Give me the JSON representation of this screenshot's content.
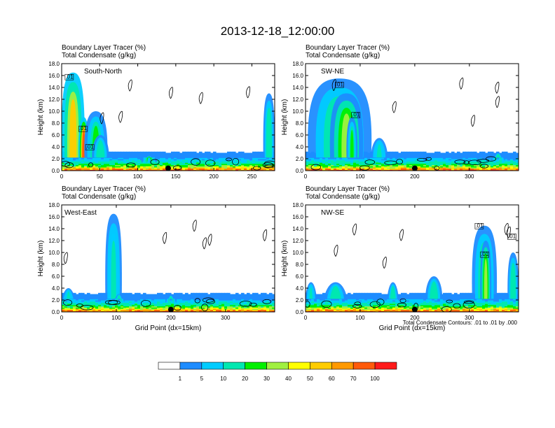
{
  "figure": {
    "title": "2013-12-18_12:00:00",
    "shading_field": "Boundary Layer Tracer",
    "shading_units": "(%)",
    "contour_field": "Total Condensate",
    "contour_units": "(g/kg)",
    "contour_note": "Total Condensate Contours: .01 to .01 by .000",
    "marker_color": "#000000"
  },
  "chart_data": [
    {
      "type": "heatmap",
      "region": "South-North",
      "title": "Boundary Layer Tracer (%)",
      "subtitle": "Total Condensate (g/kg)",
      "xlabel": "",
      "ylabel": "Height (km)",
      "xlim": [
        0,
        280
      ],
      "ylim": [
        0,
        18
      ],
      "xticks": [
        0,
        50,
        100,
        150,
        200,
        250
      ],
      "yticks": [
        0,
        2,
        4,
        6,
        8,
        10,
        12,
        14,
        16,
        18
      ],
      "ytick_labels": [
        "0.0",
        "2.0",
        "4.0",
        "6.0",
        "8.0",
        "10.0",
        "12.0",
        "14.0",
        "16.0",
        "18.0"
      ],
      "marker_x": 140,
      "contour_labels": [
        {
          "text": ".01",
          "x": 10,
          "y": 15.5
        },
        {
          "text": ".01",
          "x": 28,
          "y": 6.8
        },
        {
          "text": ".01",
          "x": 37,
          "y": 3.7
        }
      ],
      "plumes": [
        {
          "x": [
            0,
            30
          ],
          "ymax": 16.5,
          "p": 55
        },
        {
          "x": [
            22,
            36
          ],
          "ymax": 9,
          "p": 80
        },
        {
          "x": [
            30,
            60
          ],
          "ymax": 10,
          "p": 20
        },
        {
          "x": [
            40,
            62
          ],
          "ymax": 6,
          "p": 18
        },
        {
          "x": [
            105,
            125
          ],
          "ymax": 2.5,
          "p": 20
        },
        {
          "x": [
            265,
            280
          ],
          "ymax": 13,
          "p": 18
        }
      ]
    },
    {
      "type": "heatmap",
      "region": "SW-NE",
      "title": "Boundary Layer Tracer (%)",
      "subtitle": "Total Condensate (g/kg)",
      "xlabel": "",
      "ylabel": "Height (km)",
      "xlim": [
        0,
        390
      ],
      "ylim": [
        0,
        18
      ],
      "xticks": [
        0,
        100,
        200,
        300
      ],
      "yticks": [
        0,
        2,
        4,
        6,
        8,
        10,
        12,
        14,
        16,
        18
      ],
      "ytick_labels": [
        "0.0",
        "2.0",
        "4.0",
        "6.0",
        "8.0",
        "10.0",
        "12.0",
        "14.0",
        "16.0",
        "18.0"
      ],
      "marker_x": 200,
      "contour_labels": [
        {
          "text": ".01",
          "x": 62,
          "y": 14.2
        },
        {
          "text": ".01",
          "x": 92,
          "y": 9.1
        }
      ],
      "plumes": [
        {
          "x": [
            5,
            120
          ],
          "ymax": 15.5,
          "p": 22
        },
        {
          "x": [
            45,
            105
          ],
          "ymax": 13,
          "p": 32
        },
        {
          "x": [
            75,
            95
          ],
          "ymax": 9,
          "p": 28
        },
        {
          "x": [
            120,
            150
          ],
          "ymax": 5.5,
          "p": 10
        },
        {
          "x": [
            340,
            365
          ],
          "ymax": 3,
          "p": 15
        }
      ]
    },
    {
      "type": "heatmap",
      "region": "West-East",
      "title": "Boundary Layer Tracer (%)",
      "subtitle": "Total Condensate (g/kg)",
      "xlabel": "Grid Point (dx=15km)",
      "ylabel": "Height (km)",
      "xlim": [
        0,
        390
      ],
      "ylim": [
        0,
        18
      ],
      "xticks": [
        0,
        100,
        200,
        300
      ],
      "yticks": [
        0,
        2,
        4,
        6,
        8,
        10,
        12,
        14,
        16,
        18
      ],
      "ytick_labels": [
        "0.0",
        "2.0",
        "4.0",
        "6.0",
        "8.0",
        "10.0",
        "12.0",
        "14.0",
        "16.0",
        "18.0"
      ],
      "marker_x": 200,
      "contour_labels": [],
      "plumes": [
        {
          "x": [
            80,
            110
          ],
          "ymax": 16.5,
          "p": 10
        },
        {
          "x": [
            0,
            25
          ],
          "ymax": 4,
          "p": 12
        },
        {
          "x": [
            95,
            115
          ],
          "ymax": 3,
          "p": 15
        },
        {
          "x": [
            190,
            210
          ],
          "ymax": 2.8,
          "p": 18
        }
      ]
    },
    {
      "type": "heatmap",
      "region": "NW-SE",
      "title": "Boundary Layer Tracer (%)",
      "subtitle": "Total Condensate (g/kg)",
      "xlabel": "Grid Point (dx=15km)",
      "ylabel": "Height (km)",
      "xlim": [
        0,
        390
      ],
      "ylim": [
        0,
        18
      ],
      "xticks": [
        0,
        100,
        200,
        300
      ],
      "yticks": [
        0,
        2,
        4,
        6,
        8,
        10,
        12,
        14,
        16,
        18
      ],
      "ytick_labels": [
        "0.0",
        "2.0",
        "4.0",
        "6.0",
        "8.0",
        "10.0",
        "12.0",
        "14.0",
        "16.0",
        "18.0"
      ],
      "marker_x": 200,
      "contour_labels": [
        {
          "text": ".01",
          "x": 318,
          "y": 14.2
        },
        {
          "text": ".01",
          "x": 328,
          "y": 9.4
        },
        {
          "text": ".01",
          "x": 378,
          "y": 12.4
        }
      ],
      "plumes": [
        {
          "x": [
            305,
            350
          ],
          "ymax": 14.5,
          "p": 25
        },
        {
          "x": [
            320,
            340
          ],
          "ymax": 12,
          "p": 30
        },
        {
          "x": [
            370,
            390
          ],
          "ymax": 10,
          "p": 15
        },
        {
          "x": [
            0,
            20
          ],
          "ymax": 5,
          "p": 10
        },
        {
          "x": [
            35,
            75
          ],
          "ymax": 5,
          "p": 15
        },
        {
          "x": [
            150,
            170
          ],
          "ymax": 5,
          "p": 15
        },
        {
          "x": [
            220,
            250
          ],
          "ymax": 6,
          "p": 15
        }
      ]
    }
  ],
  "colorbar": {
    "labels": [
      "1",
      "5",
      "10",
      "20",
      "30",
      "40",
      "50",
      "60",
      "70",
      "100"
    ],
    "colors": [
      "#ffffff",
      "#1e8cff",
      "#00ccff",
      "#00e8b0",
      "#00f000",
      "#a0f040",
      "#ffff00",
      "#ffcc00",
      "#ff9900",
      "#ff5a0a",
      "#ff1a1a"
    ]
  }
}
